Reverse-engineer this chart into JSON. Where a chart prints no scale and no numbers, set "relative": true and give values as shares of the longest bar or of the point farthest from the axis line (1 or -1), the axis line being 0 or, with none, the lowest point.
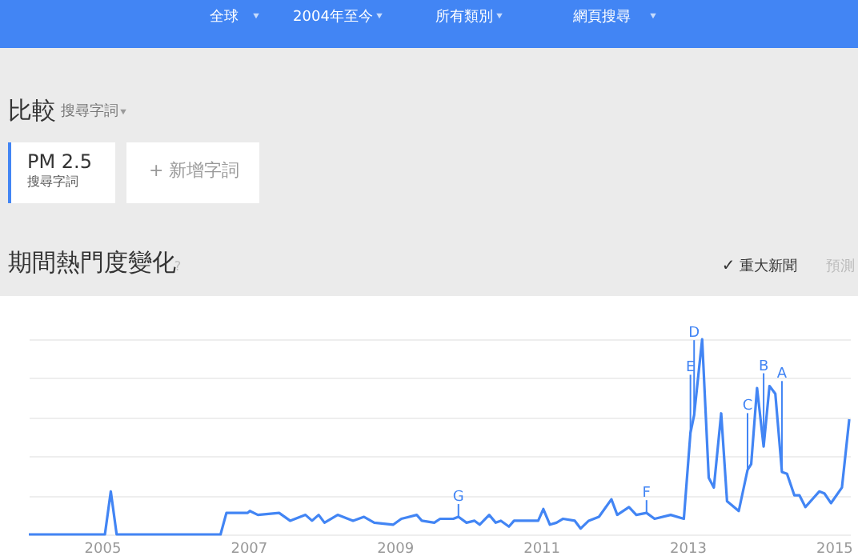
{
  "chart_data": {
    "type": "line",
    "title": "期間熱門度變化",
    "relative": true,
    "grid": "y",
    "legend": "top left",
    "xlim": [
      2004.0,
      2015.22
    ],
    "xticks": [
      2005,
      2007,
      2009,
      2011,
      2013,
      2015
    ],
    "annotations": [
      "全球",
      "2004年至今",
      "所有類別",
      "網頁搜尋",
      "比較",
      "搜尋字詞",
      "搜尋字詞",
      "+ 新增字詞",
      "?",
      "重大新聞",
      "預測",
      "✓",
      {
        "text": "G",
        "x": 2009.87,
        "y": 0.09
      },
      {
        "text": "F",
        "x": 2012.44,
        "y": 0.11
      },
      {
        "text": "E",
        "x": 2013.04,
        "y": 0.52
      },
      {
        "text": "D",
        "x": 2013.09,
        "y": 0.61
      },
      {
        "text": "C",
        "x": 2013.82,
        "y": 0.33
      },
      {
        "text": "B",
        "x": 2014.04,
        "y": 0.45
      },
      {
        "text": "A",
        "x": 2014.29,
        "y": 0.32
      }
    ],
    "series": [
      {
        "name": "PM 2.5",
        "color": "#4285f4",
        "x": [
          2004.0,
          2005.04,
          2005.12,
          2005.2,
          2006.62,
          2006.7,
          2006.99,
          2007.02,
          2007.13,
          2007.42,
          2007.57,
          2007.78,
          2007.87,
          2007.96,
          2008.04,
          2008.22,
          2008.43,
          2008.58,
          2008.72,
          2008.98,
          2009.09,
          2009.3,
          2009.37,
          2009.54,
          2009.62,
          2009.8,
          2009.87,
          2009.98,
          2010.09,
          2010.16,
          2010.29,
          2010.38,
          2010.45,
          2010.56,
          2010.63,
          2010.81,
          2010.96,
          2011.03,
          2011.12,
          2011.21,
          2011.3,
          2011.46,
          2011.54,
          2011.65,
          2011.79,
          2011.96,
          2012.04,
          2012.2,
          2012.3,
          2012.44,
          2012.55,
          2012.77,
          2012.95,
          2013.04,
          2013.09,
          2013.2,
          2013.29,
          2013.36,
          2013.46,
          2013.54,
          2013.7,
          2013.82,
          2013.87,
          2013.95,
          2014.04,
          2014.12,
          2014.2,
          2014.29,
          2014.36,
          2014.46,
          2014.53,
          2014.61,
          2014.8,
          2014.87,
          2014.96,
          2015.11,
          2015.21
        ],
        "values": [
          0,
          0,
          0.22,
          0,
          0,
          0.11,
          0.11,
          0.12,
          0.1,
          0.11,
          0.07,
          0.1,
          0.07,
          0.1,
          0.06,
          0.1,
          0.07,
          0.09,
          0.06,
          0.05,
          0.08,
          0.1,
          0.07,
          0.06,
          0.08,
          0.08,
          0.09,
          0.06,
          0.07,
          0.05,
          0.1,
          0.06,
          0.07,
          0.04,
          0.07,
          0.07,
          0.07,
          0.13,
          0.05,
          0.06,
          0.08,
          0.07,
          0.03,
          0.07,
          0.09,
          0.18,
          0.1,
          0.14,
          0.1,
          0.11,
          0.08,
          0.1,
          0.08,
          0.52,
          0.61,
          1.0,
          0.29,
          0.24,
          0.62,
          0.17,
          0.12,
          0.33,
          0.36,
          0.75,
          0.45,
          0.76,
          0.72,
          0.32,
          0.31,
          0.2,
          0.2,
          0.14,
          0.22,
          0.21,
          0.16,
          0.24,
          0.59
        ]
      }
    ]
  }
}
